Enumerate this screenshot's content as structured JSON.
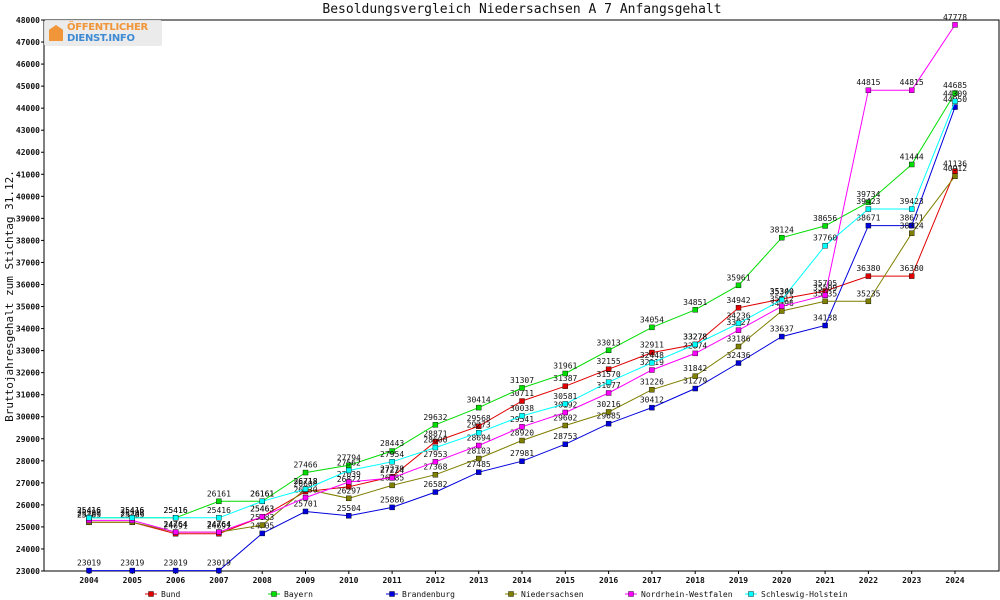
{
  "chart_data": {
    "type": "line",
    "title": "Besoldungsvergleich Niedersachsen A 7 Anfangsgehalt",
    "xlabel": "",
    "ylabel": "Bruttojahresgehalt zum Stichtag 31.12.",
    "ylim": [
      23000,
      48000
    ],
    "yticks": [
      23000,
      24000,
      25000,
      26000,
      27000,
      28000,
      29000,
      30000,
      31000,
      32000,
      33000,
      34000,
      35000,
      36000,
      37000,
      38000,
      39000,
      40000,
      41000,
      42000,
      43000,
      44000,
      45000,
      46000,
      47000,
      48000
    ],
    "categories": [
      "2004",
      "2005",
      "2006",
      "2007",
      "2008",
      "2009",
      "2010",
      "2011",
      "2012",
      "2013",
      "2014",
      "2015",
      "2016",
      "2017",
      "2018",
      "2019",
      "2020",
      "2021",
      "2022",
      "2023",
      "2024"
    ],
    "grid": false,
    "legend_position": "bottom",
    "series": [
      {
        "name": "Bund",
        "color": "#e00000",
        "values": [
          25209,
          25209,
          24691,
          24691,
          25463,
          26604,
          26822,
          27279,
          28871,
          29568,
          30711,
          31387,
          32155,
          32911,
          33278,
          34942,
          35340,
          35705,
          36380,
          36380,
          41136
        ]
      },
      {
        "name": "Bayern",
        "color": "#00dd00",
        "values": [
          25416,
          25416,
          25416,
          26161,
          26161,
          27466,
          27794,
          28443,
          29632,
          30414,
          31307,
          31961,
          33013,
          34054,
          34851,
          35961,
          38124,
          38656,
          39734,
          41444,
          44685
        ]
      },
      {
        "name": "Brandenburg",
        "color": "#0000dd",
        "values": [
          23019,
          23019,
          23019,
          23019,
          24705,
          25701,
          25504,
          25886,
          26582,
          27485,
          27981,
          28753,
          29685,
          30412,
          31279,
          32436,
          33637,
          34138,
          38671,
          38671,
          44050
        ]
      },
      {
        "name": "Niedersachsen",
        "color": "#7f7f00",
        "values": [
          25209,
          25209,
          24764,
          24764,
          25083,
          26718,
          26297,
          26885,
          27368,
          28103,
          28920,
          29602,
          30216,
          31226,
          31842,
          33186,
          34796,
          35235,
          35235,
          38324,
          40912
        ]
      },
      {
        "name": "Nordrhein-Westfalen",
        "color": "#ff00ff",
        "values": [
          25297,
          25297,
          24764,
          24764,
          25463,
          26330,
          27039,
          27224,
          27953,
          28694,
          29541,
          30192,
          31077,
          32119,
          32874,
          33927,
          35012,
          35509,
          44815,
          44815,
          47778
        ]
      },
      {
        "name": "Schleswig-Holstein",
        "color": "#00ffff",
        "values": [
          25416,
          25416,
          25416,
          25416,
          26161,
          26718,
          27562,
          27954,
          28600,
          29273,
          30038,
          30581,
          31570,
          32448,
          33278,
          34236,
          35309,
          37760,
          39423,
          39423,
          44309
        ]
      }
    ]
  }
}
